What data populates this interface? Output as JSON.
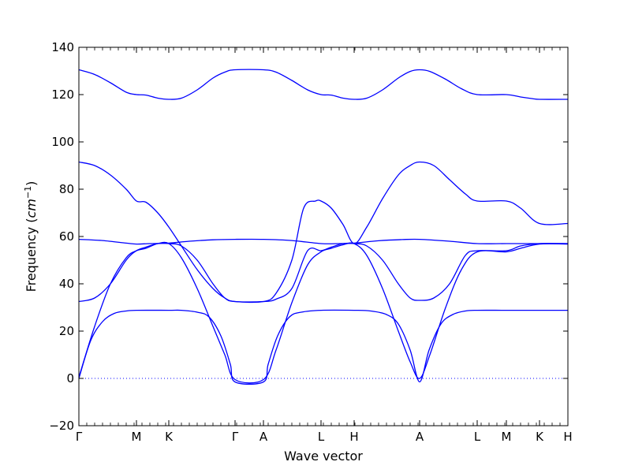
{
  "chart_data": {
    "type": "line",
    "title": "",
    "xlabel": "Wave vector",
    "ylabel": "Frequency",
    "ylabel_unit": "cm",
    "ylabel_unit_exp": "−1",
    "ylim": [
      -20,
      140
    ],
    "yticks": [
      -20,
      0,
      20,
      40,
      60,
      80,
      100,
      120,
      140
    ],
    "xlim": [
      0,
      62
    ],
    "xticks": [
      {
        "x": 0,
        "label": "Γ"
      },
      {
        "x": 7.3,
        "label": "M"
      },
      {
        "x": 11.4,
        "label": "K"
      },
      {
        "x": 19.8,
        "label": "Γ"
      },
      {
        "x": 23.4,
        "label": "A"
      },
      {
        "x": 30.7,
        "label": "L"
      },
      {
        "x": 34.9,
        "label": "H"
      },
      {
        "x": 43.2,
        "label": "A"
      },
      {
        "x": 50.5,
        "label": "L"
      },
      {
        "x": 54.2,
        "label": "M"
      },
      {
        "x": 58.4,
        "label": "K"
      },
      {
        "x": 62.0,
        "label": "H"
      }
    ],
    "grid": false,
    "line_color": "#0000ff",
    "zero_line_color": "#0000ff",
    "series": [
      {
        "points": [
          [
            0,
            130.5
          ],
          [
            2,
            128.5
          ],
          [
            4,
            125
          ],
          [
            6,
            121
          ],
          [
            7.3,
            120
          ],
          [
            8.5,
            119.8
          ],
          [
            10,
            118.5
          ],
          [
            11.4,
            118
          ],
          [
            13,
            118.5
          ],
          [
            15,
            122
          ],
          [
            17,
            127
          ],
          [
            18.5,
            129.5
          ],
          [
            19.8,
            130.5
          ],
          [
            23.4,
            130.5
          ],
          [
            25,
            129.5
          ],
          [
            27,
            126
          ],
          [
            29,
            122
          ],
          [
            30.7,
            120
          ],
          [
            32,
            119.8
          ],
          [
            33.5,
            118.5
          ],
          [
            34.9,
            118
          ],
          [
            36.5,
            118.5
          ],
          [
            38.5,
            122
          ],
          [
            40.5,
            127
          ],
          [
            42,
            129.8
          ],
          [
            43.2,
            130.5
          ],
          [
            44.5,
            129.8
          ],
          [
            46.5,
            126.5
          ],
          [
            48.5,
            122.5
          ],
          [
            50.5,
            120
          ],
          [
            54.2,
            120
          ],
          [
            56,
            119
          ],
          [
            57.5,
            118.3
          ],
          [
            58.4,
            118
          ],
          [
            62,
            118
          ]
        ]
      },
      {
        "points": [
          [
            0,
            91.5
          ],
          [
            2,
            90
          ],
          [
            4,
            86
          ],
          [
            6,
            80
          ],
          [
            7.3,
            75
          ],
          [
            8.5,
            74.5
          ],
          [
            10,
            70
          ],
          [
            11.4,
            64
          ],
          [
            13,
            56
          ],
          [
            15,
            46
          ],
          [
            17,
            38
          ],
          [
            18.5,
            34
          ],
          [
            19.8,
            32.5
          ],
          [
            23.4,
            32.5
          ],
          [
            25,
            33.5
          ],
          [
            27,
            38
          ],
          [
            29,
            54
          ],
          [
            30.7,
            54
          ],
          [
            32,
            55.5
          ],
          [
            33.5,
            57
          ],
          [
            34.9,
            57
          ],
          [
            36.5,
            56
          ],
          [
            38.5,
            50
          ],
          [
            40.5,
            40
          ],
          [
            42,
            34
          ],
          [
            43.2,
            33
          ],
          [
            45,
            34
          ],
          [
            47,
            40
          ],
          [
            49,
            52
          ],
          [
            50.5,
            54
          ],
          [
            54.2,
            54
          ],
          [
            56,
            56
          ],
          [
            58.4,
            57
          ],
          [
            62,
            57
          ]
        ]
      },
      {
        "points": [
          [
            0,
            32.5
          ],
          [
            2,
            34
          ],
          [
            4,
            40
          ],
          [
            6,
            50
          ],
          [
            7.3,
            54
          ],
          [
            8.5,
            55.5
          ],
          [
            10,
            57
          ],
          [
            11.4,
            57
          ],
          [
            13,
            56
          ],
          [
            15,
            50
          ],
          [
            17,
            40
          ],
          [
            18.5,
            34
          ],
          [
            19.8,
            32.5
          ],
          [
            23.4,
            32.5
          ],
          [
            25,
            36
          ],
          [
            27,
            50
          ],
          [
            28.5,
            72
          ],
          [
            30,
            75
          ],
          [
            30.7,
            75
          ],
          [
            32,
            72
          ],
          [
            33.5,
            65
          ],
          [
            34.9,
            57
          ],
          [
            36.5,
            64
          ],
          [
            38.5,
            76
          ],
          [
            40.5,
            86
          ],
          [
            42,
            90
          ],
          [
            43.2,
            91.5
          ],
          [
            45,
            90
          ],
          [
            47,
            84
          ],
          [
            49,
            78
          ],
          [
            50.5,
            75
          ],
          [
            54.2,
            75
          ],
          [
            56,
            72
          ],
          [
            58.4,
            65.5
          ],
          [
            62,
            65.5
          ]
        ]
      },
      {
        "points": [
          [
            0,
            58.8
          ],
          [
            3,
            58.3
          ],
          [
            6,
            57.2
          ],
          [
            7.3,
            56.8
          ],
          [
            9,
            57
          ],
          [
            11.4,
            57.2
          ],
          [
            14,
            58
          ],
          [
            17,
            58.6
          ],
          [
            19.8,
            58.8
          ],
          [
            23.4,
            58.8
          ],
          [
            27,
            58.3
          ],
          [
            30.7,
            57
          ],
          [
            33,
            57
          ],
          [
            34.9,
            57.2
          ],
          [
            38,
            58.2
          ],
          [
            41,
            58.7
          ],
          [
            43.2,
            58.8
          ],
          [
            47,
            58
          ],
          [
            50.5,
            57
          ],
          [
            54.2,
            57
          ],
          [
            58.4,
            57
          ],
          [
            62,
            57
          ]
        ]
      },
      {
        "points": [
          [
            0,
            0.5
          ],
          [
            2,
            22
          ],
          [
            4,
            40
          ],
          [
            6,
            51
          ],
          [
            7.3,
            54
          ],
          [
            8.5,
            55
          ],
          [
            10,
            57
          ],
          [
            11.4,
            57
          ],
          [
            13,
            51
          ],
          [
            15,
            38
          ],
          [
            17,
            22
          ],
          [
            18.5,
            10
          ],
          [
            19.8,
            -0.5
          ],
          [
            23.4,
            -0.5
          ],
          [
            25,
            12
          ],
          [
            27,
            32
          ],
          [
            29,
            48
          ],
          [
            30.7,
            53.5
          ],
          [
            32,
            55
          ],
          [
            33.5,
            56.5
          ],
          [
            34.9,
            57
          ],
          [
            36.5,
            52
          ],
          [
            38.5,
            38
          ],
          [
            40.5,
            20
          ],
          [
            42,
            7
          ],
          [
            43.2,
            0
          ],
          [
            44.5,
            10
          ],
          [
            46.5,
            30
          ],
          [
            48.5,
            46
          ],
          [
            50.5,
            53.5
          ],
          [
            54.2,
            53.5
          ],
          [
            56,
            55
          ],
          [
            58.4,
            56.8
          ],
          [
            62,
            56.8
          ]
        ]
      },
      {
        "points": [
          [
            0,
            0
          ],
          [
            1.5,
            16
          ],
          [
            3,
            24
          ],
          [
            4.5,
            27.5
          ],
          [
            6,
            28.5
          ],
          [
            7.3,
            28.8
          ],
          [
            11.4,
            28.8
          ],
          [
            13,
            28.8
          ],
          [
            15,
            28
          ],
          [
            16.5,
            26
          ],
          [
            18,
            18
          ],
          [
            19.2,
            6
          ],
          [
            19.8,
            -1.5
          ],
          [
            23.4,
            -1.5
          ],
          [
            24,
            6
          ],
          [
            25.2,
            18
          ],
          [
            26.7,
            26
          ],
          [
            28.2,
            28
          ],
          [
            30.7,
            28.8
          ],
          [
            34.9,
            28.8
          ],
          [
            37,
            28.5
          ],
          [
            39,
            27
          ],
          [
            40.5,
            23
          ],
          [
            42,
            12
          ],
          [
            43.2,
            -1.5
          ],
          [
            44.4,
            12
          ],
          [
            45.9,
            23
          ],
          [
            47.4,
            27
          ],
          [
            49,
            28.5
          ],
          [
            50.5,
            28.8
          ],
          [
            54.2,
            28.8
          ],
          [
            58.4,
            28.8
          ],
          [
            62,
            28.8
          ]
        ]
      }
    ]
  }
}
